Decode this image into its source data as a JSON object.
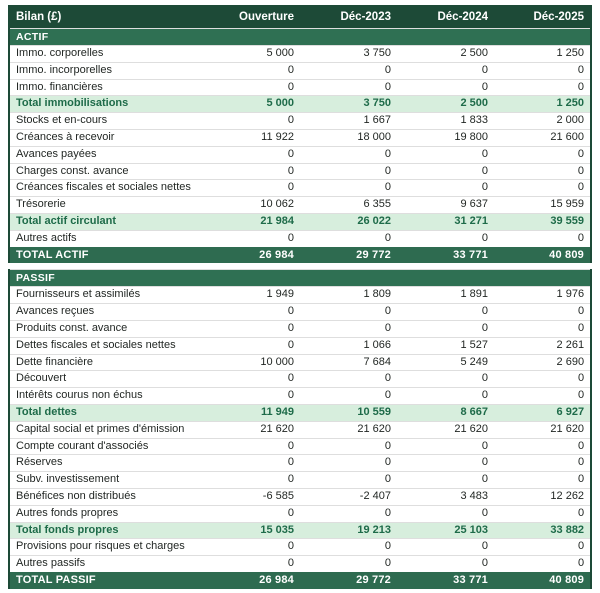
{
  "header": {
    "title": "Bilan (£)",
    "columns": [
      "Ouverture",
      "Déc-2023",
      "Déc-2024",
      "Déc-2025"
    ]
  },
  "colors": {
    "header_bg": "#1d4a37",
    "section_bg": "#2f7053",
    "subtotal_bg": "#d7eedd",
    "subtotal_text": "#1e6b49",
    "grand_total_bg": "#2e6b50",
    "header_text": "#ffffff",
    "body_text": "#1f2421",
    "row_border": "#dedede"
  },
  "sections": [
    {
      "name": "ACTIF",
      "rows": [
        {
          "label": "Immo. corporelles",
          "values": [
            "5 000",
            "3 750",
            "2 500",
            "1 250"
          ],
          "style": "normal"
        },
        {
          "label": "Immo. incorporelles",
          "values": [
            "0",
            "0",
            "0",
            "0"
          ],
          "style": "normal"
        },
        {
          "label": "Immo. financières",
          "values": [
            "0",
            "0",
            "0",
            "0"
          ],
          "style": "normal"
        },
        {
          "label": "Total immobilisations",
          "values": [
            "5 000",
            "3 750",
            "2 500",
            "1 250"
          ],
          "style": "subtotal"
        },
        {
          "label": "Stocks et en-cours",
          "values": [
            "0",
            "1 667",
            "1 833",
            "2 000"
          ],
          "style": "normal"
        },
        {
          "label": "Créances à recevoir",
          "values": [
            "11 922",
            "18 000",
            "19 800",
            "21 600"
          ],
          "style": "normal"
        },
        {
          "label": "Avances payées",
          "values": [
            "0",
            "0",
            "0",
            "0"
          ],
          "style": "normal"
        },
        {
          "label": "Charges const. avance",
          "values": [
            "0",
            "0",
            "0",
            "0"
          ],
          "style": "normal"
        },
        {
          "label": "Créances fiscales et sociales nettes",
          "values": [
            "0",
            "0",
            "0",
            "0"
          ],
          "style": "normal"
        },
        {
          "label": "Trésorerie",
          "values": [
            "10 062",
            "6 355",
            "9 637",
            "15 959"
          ],
          "style": "normal"
        },
        {
          "label": "Total actif circulant",
          "values": [
            "21 984",
            "26 022",
            "31 271",
            "39 559"
          ],
          "style": "subtotal"
        },
        {
          "label": "Autres actifs",
          "values": [
            "0",
            "0",
            "0",
            "0"
          ],
          "style": "normal"
        },
        {
          "label": "TOTAL ACTIF",
          "values": [
            "26 984",
            "29 772",
            "33 771",
            "40 809"
          ],
          "style": "total"
        }
      ]
    },
    {
      "name": "PASSIF",
      "rows": [
        {
          "label": "Fournisseurs et assimilés",
          "values": [
            "1 949",
            "1 809",
            "1 891",
            "1 976"
          ],
          "style": "normal"
        },
        {
          "label": "Avances reçues",
          "values": [
            "0",
            "0",
            "0",
            "0"
          ],
          "style": "normal"
        },
        {
          "label": "Produits const. avance",
          "values": [
            "0",
            "0",
            "0",
            "0"
          ],
          "style": "normal"
        },
        {
          "label": "Dettes fiscales et sociales nettes",
          "values": [
            "0",
            "1 066",
            "1 527",
            "2 261"
          ],
          "style": "normal"
        },
        {
          "label": "Dette financière",
          "values": [
            "10 000",
            "7 684",
            "5 249",
            "2 690"
          ],
          "style": "normal"
        },
        {
          "label": "Découvert",
          "values": [
            "0",
            "0",
            "0",
            "0"
          ],
          "style": "normal"
        },
        {
          "label": "Intérêts courus non échus",
          "values": [
            "0",
            "0",
            "0",
            "0"
          ],
          "style": "normal"
        },
        {
          "label": "Total dettes",
          "values": [
            "11 949",
            "10 559",
            "8 667",
            "6 927"
          ],
          "style": "subtotal"
        },
        {
          "label": "Capital social et primes d'émission",
          "values": [
            "21 620",
            "21 620",
            "21 620",
            "21 620"
          ],
          "style": "normal"
        },
        {
          "label": "Compte courant d'associés",
          "values": [
            "0",
            "0",
            "0",
            "0"
          ],
          "style": "normal"
        },
        {
          "label": "Réserves",
          "values": [
            "0",
            "0",
            "0",
            "0"
          ],
          "style": "normal"
        },
        {
          "label": "Subv. investissement",
          "values": [
            "0",
            "0",
            "0",
            "0"
          ],
          "style": "normal"
        },
        {
          "label": "Bénéfices non distribués",
          "values": [
            "-6 585",
            "-2 407",
            "3 483",
            "12 262"
          ],
          "style": "normal"
        },
        {
          "label": "Autres fonds propres",
          "values": [
            "0",
            "0",
            "0",
            "0"
          ],
          "style": "normal"
        },
        {
          "label": "Total fonds propres",
          "values": [
            "15 035",
            "19 213",
            "25 103",
            "33 882"
          ],
          "style": "subtotal"
        },
        {
          "label": "Provisions pour risques et charges",
          "values": [
            "0",
            "0",
            "0",
            "0"
          ],
          "style": "normal"
        },
        {
          "label": "Autres passifs",
          "values": [
            "0",
            "0",
            "0",
            "0"
          ],
          "style": "normal"
        },
        {
          "label": "TOTAL PASSIF",
          "values": [
            "26 984",
            "29 772",
            "33 771",
            "40 809"
          ],
          "style": "total"
        }
      ]
    }
  ]
}
